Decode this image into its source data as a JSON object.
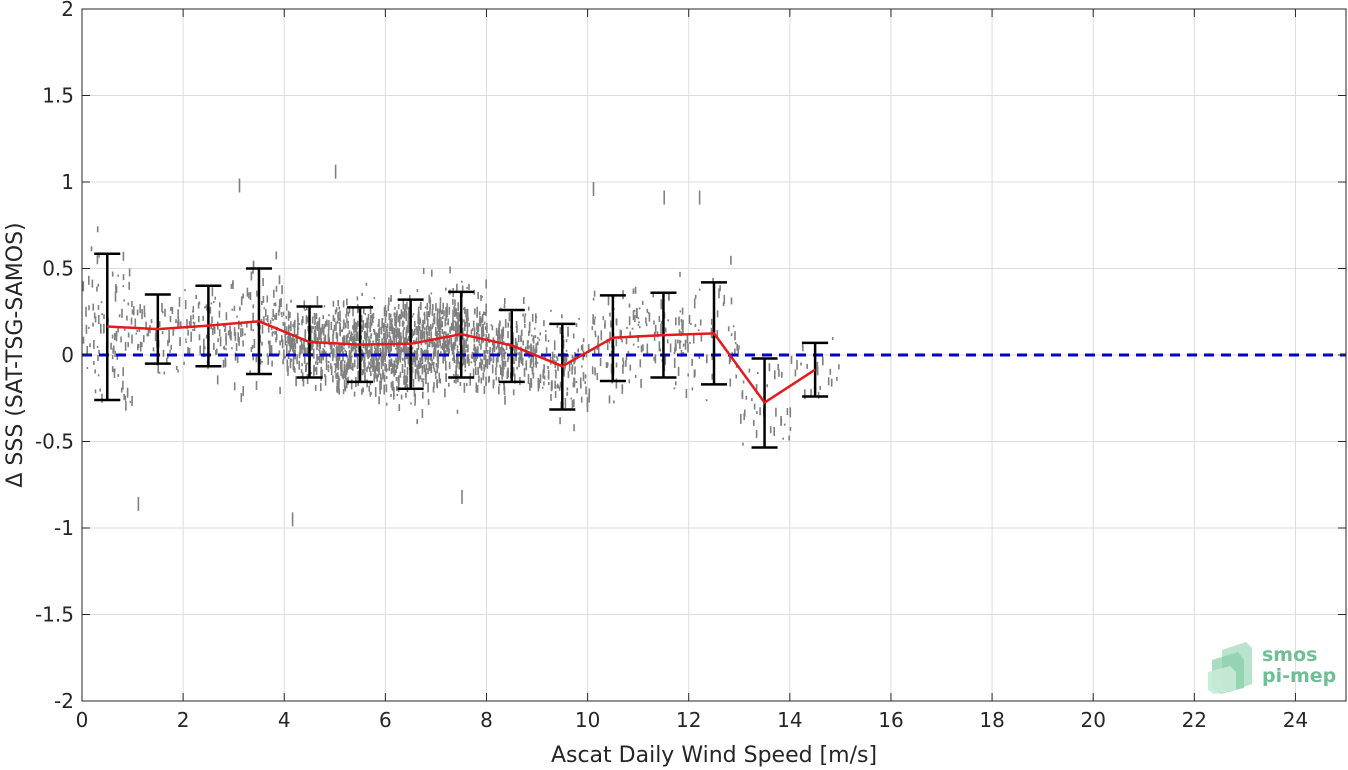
{
  "chart_data": {
    "type": "scatter",
    "xlabel": "Ascat Daily Wind Speed [m/s]",
    "ylabel": "Δ SSS (SAT-TSG-SAMOS)",
    "xlim": [
      0,
      25
    ],
    "ylim": [
      -2,
      2
    ],
    "xticks": [
      0,
      2,
      4,
      6,
      8,
      10,
      12,
      14,
      16,
      18,
      20,
      22,
      24
    ],
    "yticks": [
      -2,
      -1.5,
      -1,
      -0.5,
      0,
      0.5,
      1,
      1.5,
      2
    ],
    "ytick_labels": [
      "-2",
      "-1.5",
      "-1",
      "-0.5",
      "0",
      "0.5",
      "1",
      "1.5",
      "2"
    ],
    "grid": true,
    "series": [
      {
        "kind": "points",
        "color": "#808080",
        "description_bins": [
          0.5,
          1.5,
          2.5,
          3.5,
          4.5,
          5.5,
          6.5,
          7.5,
          8.5,
          9.5,
          10.5,
          11.5,
          12.5,
          13.5,
          14.5
        ],
        "bin_spread": [
          0.42,
          0.2,
          0.23,
          0.3,
          0.2,
          0.22,
          0.26,
          0.25,
          0.2,
          0.25,
          0.25,
          0.25,
          0.3,
          0.26,
          0.16
        ],
        "extremes": [
          [
            1.1,
            -0.82
          ],
          [
            3.1,
            1.02
          ],
          [
            5.0,
            1.1
          ],
          [
            4.15,
            -0.91
          ],
          [
            7.5,
            -0.78
          ],
          [
            10.1,
            1.0
          ],
          [
            11.5,
            0.95
          ],
          [
            12.2,
            0.95
          ]
        ]
      },
      {
        "kind": "mean_line",
        "color": "#e41a1c",
        "x": [
          0.5,
          1.5,
          2.5,
          3.5,
          4.5,
          5.5,
          6.5,
          7.5,
          8.5,
          9.5,
          10.5,
          11.5,
          12.5,
          13.5,
          14.5
        ],
        "y": [
          0.165,
          0.15,
          0.17,
          0.195,
          0.075,
          0.06,
          0.065,
          0.12,
          0.055,
          -0.065,
          0.1,
          0.115,
          0.125,
          -0.275,
          -0.085
        ]
      },
      {
        "kind": "error_bars",
        "color": "#000000",
        "x": [
          0.5,
          1.5,
          2.5,
          3.5,
          4.5,
          5.5,
          6.5,
          7.5,
          8.5,
          9.5,
          10.5,
          11.5,
          12.5,
          13.5,
          14.5
        ],
        "low": [
          -0.26,
          -0.05,
          -0.065,
          -0.11,
          -0.13,
          -0.155,
          -0.195,
          -0.13,
          -0.155,
          -0.315,
          -0.15,
          -0.13,
          -0.17,
          -0.535,
          -0.24
        ],
        "high": [
          0.585,
          0.35,
          0.4,
          0.5,
          0.28,
          0.275,
          0.32,
          0.365,
          0.26,
          0.18,
          0.345,
          0.36,
          0.42,
          -0.02,
          0.07
        ]
      },
      {
        "kind": "reference_line",
        "color": "#0000cc",
        "y": 0
      }
    ]
  },
  "logo": {
    "line1": "smos",
    "line2": "pi-mep"
  }
}
